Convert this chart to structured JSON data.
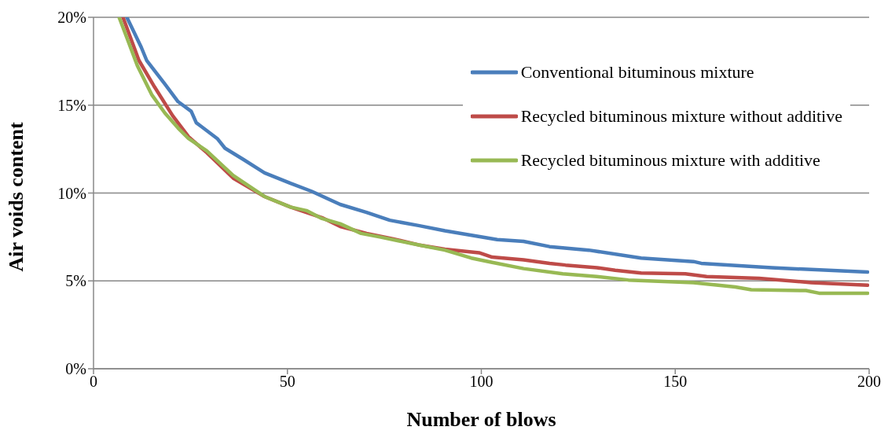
{
  "chart_data": {
    "type": "line",
    "xlabel": "Number of blows",
    "ylabel": "Air voids content",
    "xlim": [
      0,
      200
    ],
    "xticks": [
      0,
      50,
      100,
      150,
      200
    ],
    "ylim": [
      0,
      20
    ],
    "yticks": [
      {
        "value": 0,
        "label": "0%"
      },
      {
        "value": 5,
        "label": "5%"
      },
      {
        "value": 10,
        "label": "10%"
      },
      {
        "value": 15,
        "label": "15%"
      },
      {
        "value": 20,
        "label": "20%"
      }
    ],
    "grid": "y",
    "legend": "top right",
    "line_style": "solid",
    "marker": "none",
    "series": [
      {
        "name": "Conventional bituminous mixture",
        "color": "#4a7ebb",
        "x": [
          8.6,
          12.3,
          13.7,
          18.4,
          21.8,
          25.2,
          26.5,
          31.9,
          33.9,
          38.7,
          44.1,
          50.8,
          56.2,
          63.6,
          70.4,
          76.4,
          83.8,
          90.6,
          98.7,
          104.1,
          110.9,
          117.6,
          127.7,
          141.2,
          154.7,
          156.7,
          174.9,
          199.6
        ],
        "values": [
          20,
          18.3,
          17.55,
          16.2,
          15.2,
          14.65,
          14.0,
          13.1,
          12.55,
          11.9,
          11.15,
          10.55,
          10.1,
          9.35,
          8.9,
          8.45,
          8.15,
          7.85,
          7.55,
          7.35,
          7.25,
          6.95,
          6.75,
          6.3,
          6.1,
          6.0,
          5.75,
          5.5
        ]
      },
      {
        "name": "Recycled bituminous mixture without additive",
        "color": "#be4b48",
        "x": [
          7.6,
          11.7,
          15.7,
          20.4,
          24.5,
          29.2,
          36.0,
          44.1,
          50.8,
          58.9,
          63.6,
          70.4,
          77.1,
          83.8,
          90.6,
          99.4,
          102.8,
          110.9,
          117.6,
          121.7,
          129.8,
          134.5,
          141.2,
          152.6,
          158.1,
          171.6,
          185.1,
          199.6
        ],
        "values": [
          20,
          17.55,
          16.05,
          14.4,
          13.2,
          12.3,
          10.85,
          9.8,
          9.2,
          8.6,
          8.1,
          7.7,
          7.4,
          7.05,
          6.8,
          6.6,
          6.35,
          6.2,
          6.0,
          5.9,
          5.75,
          5.6,
          5.45,
          5.4,
          5.25,
          5.15,
          4.9,
          4.75
        ]
      },
      {
        "name": "Recycled bituminous mixture with additive",
        "color": "#98b954",
        "x": [
          6.6,
          9.0,
          11.3,
          15.0,
          18.4,
          21.8,
          24.5,
          29.2,
          36.0,
          44.1,
          50.8,
          54.9,
          58.9,
          63.6,
          69.0,
          73.8,
          83.8,
          90.6,
          97.4,
          102.8,
          110.9,
          121.0,
          129.8,
          137.9,
          154.7,
          165.5,
          169.6,
          183.7,
          187.1,
          199.6
        ],
        "values": [
          20,
          18.6,
          17.25,
          15.6,
          14.55,
          13.7,
          13.1,
          12.4,
          11.0,
          9.8,
          9.2,
          9.0,
          8.55,
          8.25,
          7.7,
          7.5,
          7.05,
          6.75,
          6.3,
          6.05,
          5.7,
          5.4,
          5.25,
          5.05,
          4.9,
          4.65,
          4.5,
          4.45,
          4.3,
          4.3
        ]
      }
    ]
  }
}
